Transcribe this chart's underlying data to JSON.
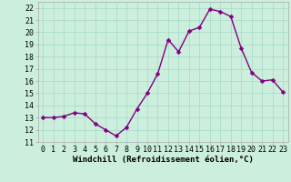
{
  "x": [
    0,
    1,
    2,
    3,
    4,
    5,
    6,
    7,
    8,
    9,
    10,
    11,
    12,
    13,
    14,
    15,
    16,
    17,
    18,
    19,
    20,
    21,
    22,
    23
  ],
  "y": [
    13.0,
    13.0,
    13.1,
    13.4,
    13.3,
    12.5,
    12.0,
    11.5,
    12.2,
    13.7,
    15.0,
    16.6,
    19.4,
    18.4,
    20.1,
    20.4,
    21.9,
    21.7,
    21.3,
    18.7,
    16.7,
    16.0,
    16.1,
    15.1
  ],
  "xlim": [
    -0.5,
    23.5
  ],
  "ylim": [
    11,
    22.5
  ],
  "yticks": [
    11,
    12,
    13,
    14,
    15,
    16,
    17,
    18,
    19,
    20,
    21,
    22
  ],
  "xticks": [
    0,
    1,
    2,
    3,
    4,
    5,
    6,
    7,
    8,
    9,
    10,
    11,
    12,
    13,
    14,
    15,
    16,
    17,
    18,
    19,
    20,
    21,
    22,
    23
  ],
  "xlabel": "Windchill (Refroidissement éolien,°C)",
  "line_color": "#800080",
  "marker_color": "#800080",
  "bg_color": "#cceedd",
  "grid_color": "#aaddcc",
  "xlabel_fontsize": 6.5,
  "tick_fontsize": 6.0,
  "line_width": 1.0,
  "marker_size": 2.5
}
